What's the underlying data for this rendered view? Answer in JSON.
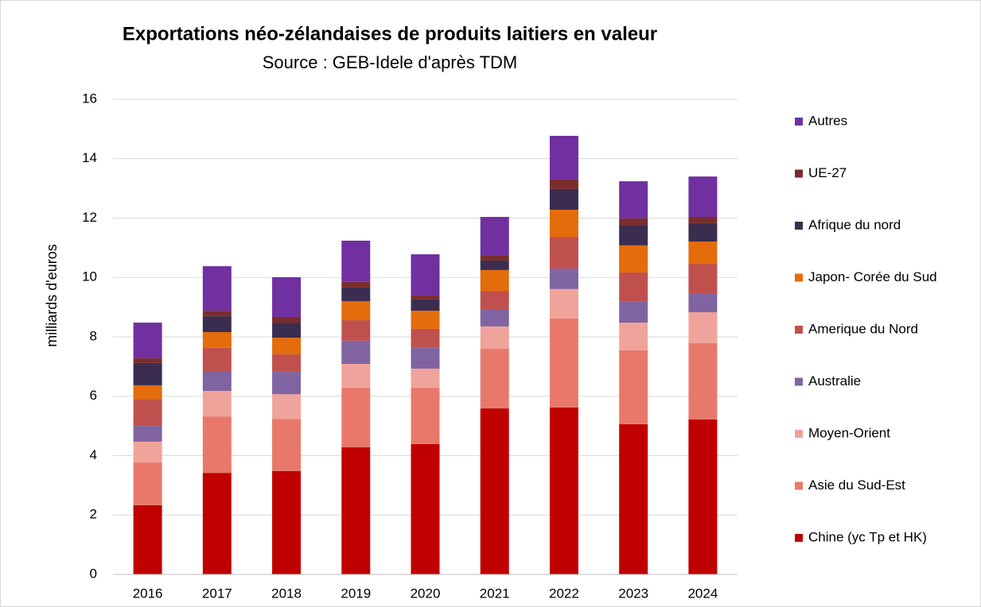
{
  "chart_data": {
    "type": "stacked_bar",
    "title": "Exportations néo-zélandaises de produits laitiers en valeur",
    "subtitle": "Source : GEB-Idele d'après TDM",
    "y_label": "milliards d'euros",
    "categories": [
      "2016",
      "2017",
      "2018",
      "2019",
      "2020",
      "2021",
      "2022",
      "2023",
      "2024"
    ],
    "series": [
      {
        "name": "Chine (yc Tp et HK)",
        "color": "#c00000",
        "values": [
          2.33,
          3.42,
          3.48,
          4.28,
          4.39,
          5.59,
          5.62,
          5.06,
          5.22
        ]
      },
      {
        "name": "Asie du Sud-Est",
        "color": "#e8796a",
        "values": [
          1.44,
          1.9,
          1.76,
          2.01,
          1.9,
          2.01,
          3.0,
          2.49,
          2.57
        ]
      },
      {
        "name": "Moyen-Orient",
        "color": "#f0a39a",
        "values": [
          0.7,
          0.86,
          0.83,
          0.8,
          0.64,
          0.75,
          0.99,
          0.93,
          1.04
        ]
      },
      {
        "name": "Australie",
        "color": "#8064a2",
        "values": [
          0.53,
          0.67,
          0.75,
          0.78,
          0.7,
          0.56,
          0.69,
          0.7,
          0.64
        ]
      },
      {
        "name": "Amerique du Nord",
        "color": "#c0504d",
        "values": [
          0.91,
          0.78,
          0.59,
          0.69,
          0.64,
          0.64,
          1.07,
          0.99,
          0.99
        ]
      },
      {
        "name": "Japon- Corée du Sud",
        "color": "#e46c0a",
        "values": [
          0.46,
          0.53,
          0.56,
          0.64,
          0.61,
          0.7,
          0.91,
          0.91,
          0.75
        ]
      },
      {
        "name": "Afrique du nord",
        "color": "#3b2d4f",
        "values": [
          0.75,
          0.54,
          0.51,
          0.46,
          0.38,
          0.32,
          0.7,
          0.69,
          0.62
        ]
      },
      {
        "name": "UE-27",
        "color": "#7b2c2c",
        "values": [
          0.16,
          0.18,
          0.19,
          0.19,
          0.13,
          0.16,
          0.32,
          0.22,
          0.21
        ]
      },
      {
        "name": "Autres",
        "color": "#7030a0",
        "values": [
          1.2,
          1.5,
          1.34,
          1.39,
          1.39,
          1.31,
          1.47,
          1.25,
          1.36
        ]
      }
    ],
    "ylim": [
      0,
      16
    ],
    "yticks": [
      0,
      2,
      4,
      6,
      8,
      10,
      12,
      14,
      16
    ],
    "grid": true
  }
}
